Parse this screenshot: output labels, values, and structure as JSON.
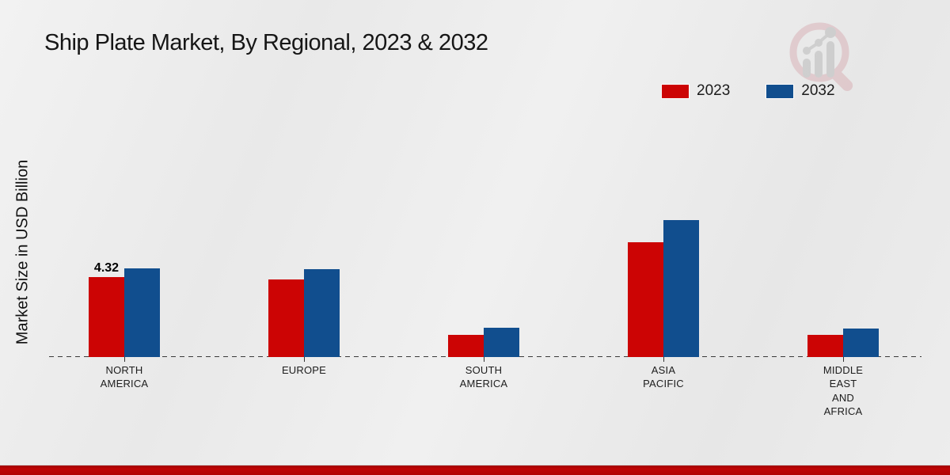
{
  "title": "Ship Plate Market, By Regional, 2023 & 2032",
  "y_axis_label": "Market Size in USD Billion",
  "watermark_icon": "magnifier-bar-chart-logo",
  "accent_colors": {
    "footer_red": "#b10202",
    "series_2023_red": "#cc0404",
    "series_2032_blue": "#114e8e"
  },
  "chart_data": {
    "type": "bar",
    "title": "Ship Plate Market, By Regional, 2023 & 2032",
    "xlabel": "",
    "ylabel": "Market Size in USD Billion",
    "categories": [
      "NORTH AMERICA",
      "EUROPE",
      "SOUTH AMERICA",
      "ASIA PACIFIC",
      "MIDDLE EAST AND AFRICA"
    ],
    "series": [
      {
        "name": "2023",
        "color": "#cc0404",
        "values": [
          4.32,
          4.2,
          1.2,
          6.2,
          1.2
        ]
      },
      {
        "name": "2032",
        "color": "#114e8e",
        "values": [
          4.8,
          4.75,
          1.6,
          7.4,
          1.55
        ]
      }
    ],
    "annotations": [
      {
        "series_index": 0,
        "category_index": 0,
        "text": "4.32"
      }
    ],
    "ylim": [
      0,
      8
    ],
    "grid": false,
    "y_axis_ticks_visible": false,
    "baseline_style": "dashed",
    "legend_position": "top-right"
  }
}
